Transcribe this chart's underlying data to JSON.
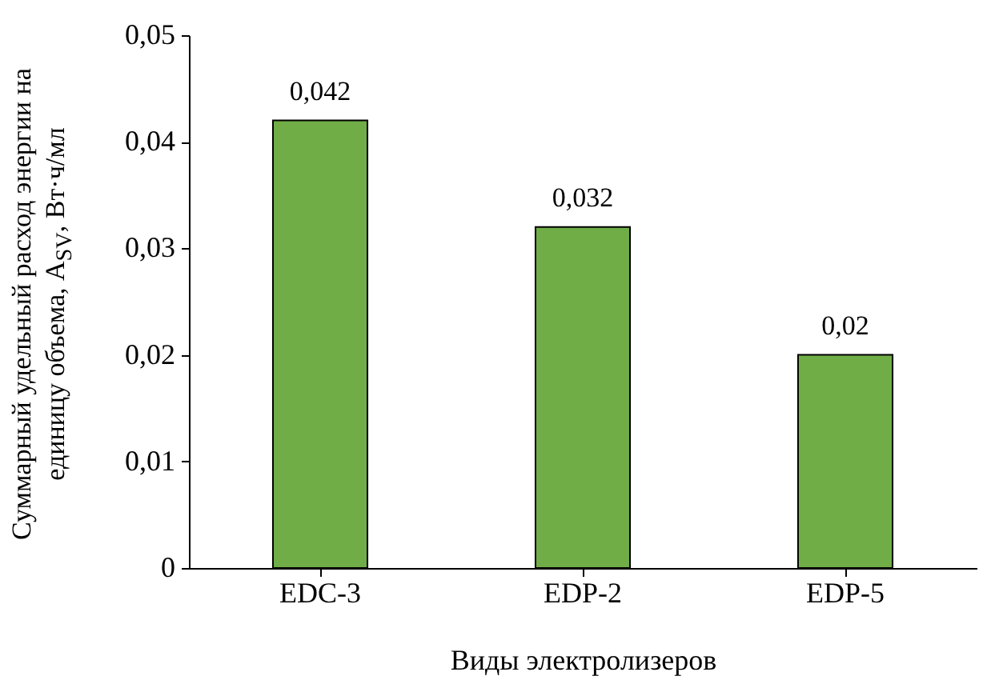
{
  "chart_data": {
    "type": "bar",
    "xlabel": "Виды электролизеров",
    "ylabel": "Суммарный удельный расход энергии на единицу объема, A$_{SV}$, Вт·ч/мл",
    "categories": [
      "EDC-3",
      "EDP-2",
      "EDP-5"
    ],
    "values": [
      0.042,
      0.032,
      0.02
    ],
    "value_labels": [
      "0,042",
      "0,032",
      "0,02"
    ],
    "color": "#70ad47",
    "ylim": [
      0,
      0.05
    ],
    "yticks": [
      {
        "value": 0,
        "label": "0"
      },
      {
        "value": 0.01,
        "label": "0,01"
      },
      {
        "value": 0.02,
        "label": "0,02"
      },
      {
        "value": 0.03,
        "label": "0,03"
      },
      {
        "value": 0.04,
        "label": "0,04"
      },
      {
        "value": 0.05,
        "label": "0,05"
      }
    ],
    "grid": false
  }
}
